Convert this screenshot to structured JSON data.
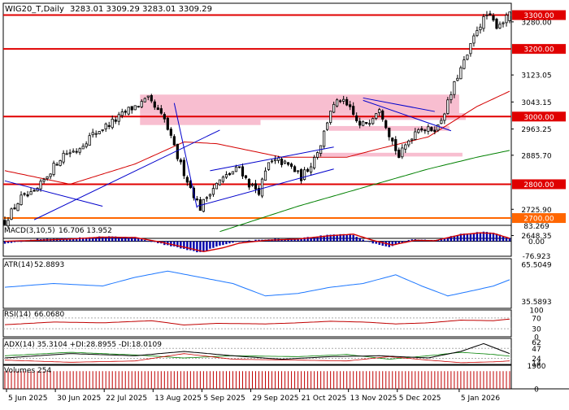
{
  "header": {
    "symbol": "WIG20_T,Daily",
    "ohlc": "3283.01 3309.29 3283.01 3309.29"
  },
  "colors": {
    "background": "#ffffff",
    "frame": "#000000",
    "candle": "#000000",
    "sr_line": "#e00000",
    "orange_line": "#ff6600",
    "zone_fill": "#f7b3c8",
    "trendline": "#0000cc",
    "ma_short": "#d40000",
    "ma_long": "#008000",
    "macd_hist": "#0000aa",
    "macd_signal": "#d40000",
    "atr_line": "#1e78ff",
    "rsi_line": "#c00000",
    "adx_line": "#000000",
    "di_plus": "#008000",
    "di_minus": "#cc0000",
    "volume_bar": "#c00000",
    "label_red_bg": "#e00000",
    "label_orange_bg": "#ff6600"
  },
  "chart_data": [
    {
      "type": "candlestick",
      "title": "WIG20_T,Daily",
      "ylim": [
        2640,
        3335
      ],
      "y_ticks": [
        "3280.00",
        "3123.05",
        "3043.15",
        "2963.25",
        "2885.70",
        "2725.90",
        "2648.35"
      ],
      "x_labels": [
        "5 Jun 2025",
        "30 Jun 2025",
        "22 Jul 2025",
        "13 Aug 2025",
        "5 Sep 2025",
        "29 Sep 2025",
        "21 Oct 2025",
        "13 Nov 2025",
        "5 Dec 2025",
        "5 Jan 2026"
      ],
      "n_bars": 156,
      "anchors": [
        [
          0,
          2690
        ],
        [
          5,
          2760
        ],
        [
          9,
          2770
        ],
        [
          14,
          2840
        ],
        [
          18,
          2890
        ],
        [
          22,
          2900
        ],
        [
          26,
          2940
        ],
        [
          29,
          2960
        ],
        [
          34,
          2990
        ],
        [
          38,
          3020
        ],
        [
          44,
          3050
        ],
        [
          49,
          2990
        ],
        [
          53,
          2880
        ],
        [
          57,
          2790
        ],
        [
          60,
          2730
        ],
        [
          63,
          2780
        ],
        [
          66,
          2810
        ],
        [
          69,
          2830
        ],
        [
          72,
          2850
        ],
        [
          75,
          2800
        ],
        [
          78,
          2780
        ],
        [
          81,
          2860
        ],
        [
          84,
          2870
        ],
        [
          88,
          2850
        ],
        [
          91,
          2820
        ],
        [
          94,
          2860
        ],
        [
          97,
          2920
        ],
        [
          100,
          3020
        ],
        [
          103,
          3050
        ],
        [
          106,
          3020
        ],
        [
          109,
          2970
        ],
        [
          112,
          2990
        ],
        [
          115,
          3030
        ],
        [
          118,
          2950
        ],
        [
          121,
          2880
        ],
        [
          124,
          2930
        ],
        [
          127,
          2970
        ],
        [
          130,
          2960
        ],
        [
          133,
          2970
        ],
        [
          136,
          3040
        ],
        [
          139,
          3120
        ],
        [
          142,
          3180
        ],
        [
          145,
          3260
        ],
        [
          148,
          3300
        ],
        [
          151,
          3270
        ],
        [
          154,
          3290
        ],
        [
          155,
          3309
        ]
      ],
      "horizontal_levels": [
        {
          "value": 3300,
          "label": "3300.00",
          "color": "#e00000"
        },
        {
          "value": 3200,
          "label": "3200.00",
          "color": "#e00000"
        },
        {
          "value": 3000,
          "label": "3000.00",
          "color": "#e00000"
        },
        {
          "value": 2800,
          "label": "2800.00",
          "color": "#e00000"
        },
        {
          "value": 2700,
          "label": "2700.00",
          "color": "#ff6600"
        }
      ],
      "zones": [
        {
          "from_bar": 42,
          "to_bar": 140,
          "y_low": 3010,
          "y_high": 3065
        },
        {
          "from_bar": 42,
          "to_bar": 79,
          "y_low": 2975,
          "y_high": 3010
        },
        {
          "from_bar": 79,
          "to_bar": 142,
          "y_low": 2990,
          "y_high": 3010
        },
        {
          "from_bar": 100,
          "to_bar": 137,
          "y_low": 2958,
          "y_high": 2972
        },
        {
          "from_bar": 96,
          "to_bar": 141,
          "y_low": 2882,
          "y_high": 2893
        }
      ],
      "trendlines": [
        {
          "x1": 0,
          "y1": 2810,
          "x2": 30,
          "y2": 2735
        },
        {
          "x1": 9,
          "y1": 2695,
          "x2": 66,
          "y2": 2960
        },
        {
          "x1": 52,
          "y1": 3040,
          "x2": 59,
          "y2": 2730
        },
        {
          "x1": 59,
          "y1": 2735,
          "x2": 101,
          "y2": 2845
        },
        {
          "x1": 63,
          "y1": 2840,
          "x2": 101,
          "y2": 2910
        },
        {
          "x1": 110,
          "y1": 3055,
          "x2": 132,
          "y2": 3015
        },
        {
          "x1": 110,
          "y1": 3048,
          "x2": 137,
          "y2": 2958
        }
      ],
      "ma_short": [
        [
          0,
          2840
        ],
        [
          20,
          2800
        ],
        [
          40,
          2860
        ],
        [
          55,
          2925
        ],
        [
          65,
          2920
        ],
        [
          85,
          2880
        ],
        [
          105,
          2880
        ],
        [
          115,
          2905
        ],
        [
          130,
          2940
        ],
        [
          145,
          3030
        ],
        [
          155,
          3075
        ]
      ],
      "ma_long": [
        [
          66,
          2660
        ],
        [
          90,
          2735
        ],
        [
          110,
          2790
        ],
        [
          130,
          2845
        ],
        [
          145,
          2880
        ],
        [
          155,
          2900
        ]
      ]
    },
    {
      "type": "bar",
      "title": "MACD(3,10,5)",
      "values_text": "16.706 13.952",
      "ylim": [
        -80,
        85
      ],
      "y_ticks": [
        "83.269",
        "0.00",
        "-76.923"
      ],
      "hist_anchors": [
        [
          0,
          -10
        ],
        [
          10,
          10
        ],
        [
          20,
          15
        ],
        [
          30,
          25
        ],
        [
          40,
          20
        ],
        [
          47,
          -10
        ],
        [
          55,
          -40
        ],
        [
          60,
          -60
        ],
        [
          65,
          -30
        ],
        [
          70,
          -5
        ],
        [
          80,
          10
        ],
        [
          90,
          15
        ],
        [
          100,
          35
        ],
        [
          106,
          40
        ],
        [
          112,
          -5
        ],
        [
          118,
          -30
        ],
        [
          125,
          10
        ],
        [
          132,
          5
        ],
        [
          140,
          40
        ],
        [
          146,
          50
        ],
        [
          150,
          45
        ],
        [
          155,
          14
        ]
      ],
      "signal_anchors": [
        [
          0,
          0
        ],
        [
          10,
          5
        ],
        [
          20,
          12
        ],
        [
          30,
          22
        ],
        [
          40,
          20
        ],
        [
          48,
          -5
        ],
        [
          56,
          -35
        ],
        [
          61,
          -55
        ],
        [
          67,
          -35
        ],
        [
          72,
          -10
        ],
        [
          80,
          5
        ],
        [
          90,
          12
        ],
        [
          100,
          30
        ],
        [
          107,
          38
        ],
        [
          113,
          5
        ],
        [
          119,
          -20
        ],
        [
          126,
          5
        ],
        [
          132,
          3
        ],
        [
          140,
          35
        ],
        [
          146,
          45
        ],
        [
          150,
          42
        ],
        [
          155,
          16
        ]
      ]
    },
    {
      "type": "line",
      "title": "ATR(14)",
      "values_text": "52.8893",
      "ylim": [
        30,
        70
      ],
      "y_ticks": [
        "65.5049",
        "35.5893"
      ],
      "anchors": [
        [
          0,
          47
        ],
        [
          15,
          50
        ],
        [
          30,
          48
        ],
        [
          40,
          55
        ],
        [
          50,
          60
        ],
        [
          60,
          55
        ],
        [
          70,
          50
        ],
        [
          80,
          40
        ],
        [
          90,
          42
        ],
        [
          100,
          47
        ],
        [
          110,
          50
        ],
        [
          120,
          57
        ],
        [
          128,
          48
        ],
        [
          136,
          40
        ],
        [
          145,
          45
        ],
        [
          150,
          48
        ],
        [
          155,
          53
        ]
      ]
    },
    {
      "type": "line",
      "title": "RSI(14)",
      "values_text": "66.0680",
      "ylim": [
        0,
        100
      ],
      "y_ticks": [
        "100",
        "70",
        "30",
        "0"
      ],
      "anchors": [
        [
          0,
          45
        ],
        [
          15,
          55
        ],
        [
          30,
          52
        ],
        [
          45,
          60
        ],
        [
          55,
          44
        ],
        [
          65,
          50
        ],
        [
          80,
          48
        ],
        [
          90,
          52
        ],
        [
          100,
          58
        ],
        [
          110,
          55
        ],
        [
          120,
          48
        ],
        [
          130,
          52
        ],
        [
          140,
          62
        ],
        [
          150,
          60
        ],
        [
          155,
          66
        ]
      ]
    },
    {
      "type": "line",
      "title": "ADX(14) 35.3104 +DI:28.8955 -DI:18.0109",
      "ylim": [
        10,
        70
      ],
      "y_ticks": [
        "62",
        "47",
        "24",
        "14"
      ],
      "adx": [
        [
          0,
          25
        ],
        [
          20,
          35
        ],
        [
          40,
          30
        ],
        [
          55,
          40
        ],
        [
          70,
          30
        ],
        [
          85,
          22
        ],
        [
          100,
          28
        ],
        [
          115,
          30
        ],
        [
          130,
          25
        ],
        [
          140,
          40
        ],
        [
          147,
          58
        ],
        [
          155,
          35
        ]
      ],
      "di_plus": [
        [
          0,
          30
        ],
        [
          20,
          38
        ],
        [
          40,
          32
        ],
        [
          55,
          25
        ],
        [
          70,
          30
        ],
        [
          90,
          28
        ],
        [
          105,
          33
        ],
        [
          118,
          22
        ],
        [
          130,
          30
        ],
        [
          140,
          38
        ],
        [
          150,
          33
        ],
        [
          155,
          29
        ]
      ],
      "di_minus": [
        [
          0,
          20
        ],
        [
          20,
          15
        ],
        [
          40,
          18
        ],
        [
          55,
          35
        ],
        [
          70,
          22
        ],
        [
          90,
          20
        ],
        [
          105,
          18
        ],
        [
          118,
          28
        ],
        [
          130,
          20
        ],
        [
          140,
          14
        ],
        [
          150,
          16
        ],
        [
          155,
          18
        ]
      ]
    },
    {
      "type": "bar",
      "title": "Volumes 254",
      "ylim": [
        0,
        2000
      ],
      "y_ticks": [
        "1960",
        "0"
      ],
      "uniform_value": 1500
    }
  ]
}
